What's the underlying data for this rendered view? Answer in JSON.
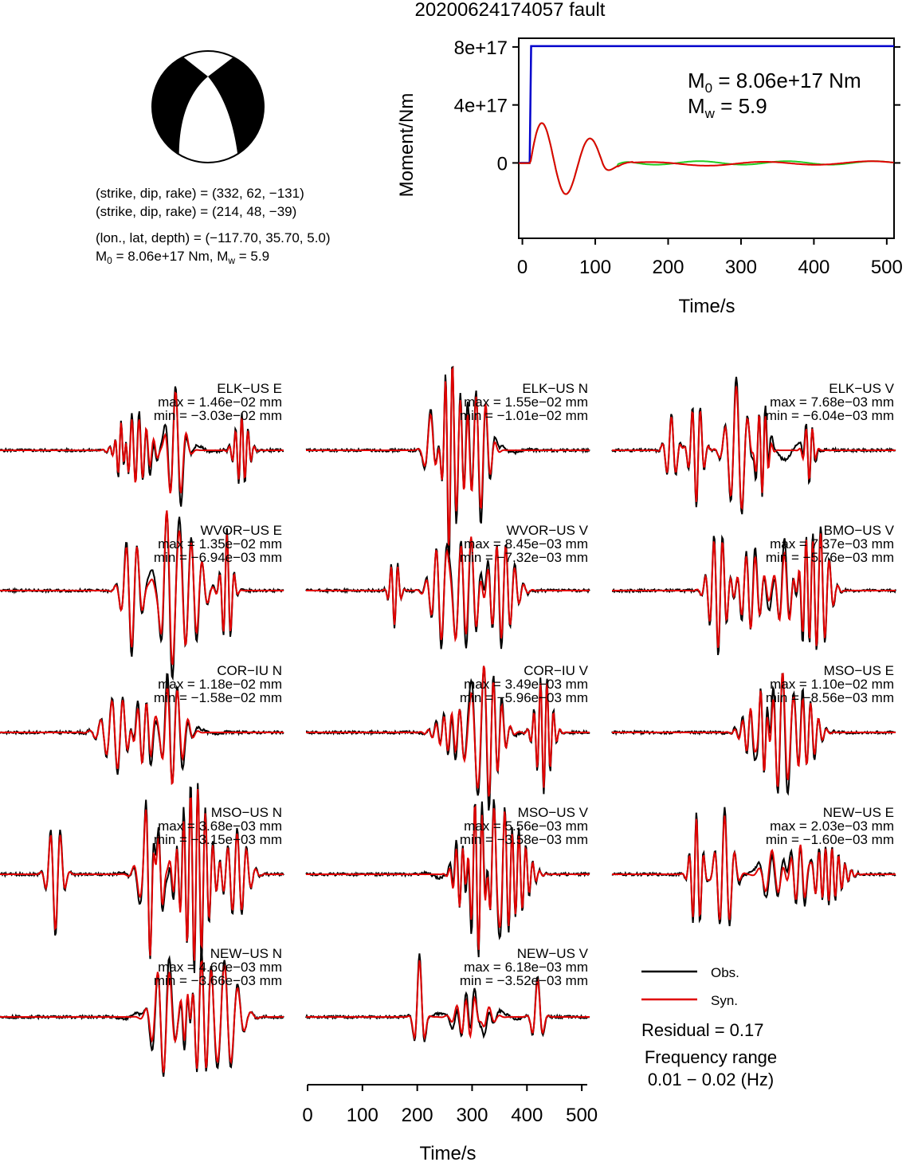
{
  "title": "20200624174057 fault",
  "mechanism": {
    "line1": "(strike, dip, rake) = (332, 62, −131)",
    "line2": "(strike, dip, rake) = (214, 48, −39)",
    "line3": "(lon., lat, depth) = (−117.70, 35.70, 5.0)",
    "m0_prefix": "M",
    "m0_sub": "0",
    "m0_rest": " = 8.06e+17 Nm, M",
    "mw_sub": "w",
    "mw_rest": " = 5.9",
    "beachball_label": "beachball-icon"
  },
  "colors": {
    "observed": "#000000",
    "synthetic": "#e00000",
    "moment": "#0000cc",
    "moment_rate_syn": "#e00000",
    "moment_rate_alt": "#22cc22"
  },
  "chart_data": [
    {
      "type": "line",
      "name": "moment-function",
      "ylabel": "Moment/Nm",
      "xlabel": "Time/s",
      "xlim": [
        -5,
        510
      ],
      "ylim": [
        -5.2e+17,
        8.6e+17
      ],
      "xticks": [
        0,
        100,
        200,
        300,
        400,
        500
      ],
      "xtick_labels": [
        "0",
        "100",
        "200",
        "300",
        "400",
        "500"
      ],
      "yticks": [
        0,
        4e+17,
        8e+17
      ],
      "ytick_labels": [
        "0",
        "4e+17",
        "8e+17"
      ],
      "annot_m0_main": "M",
      "annot_m0_sub": "0",
      "annot_m0_rest": " = 8.06e+17 Nm",
      "annot_mw_main": "M",
      "annot_mw_sub": "w",
      "annot_mw_rest": " = 5.9",
      "moment_step": {
        "t0": 10,
        "t1": 12,
        "value": 8.06e+17
      },
      "oscillation": {
        "amp": 3.1e+17,
        "period": 66,
        "onset": 11,
        "decay_tau": 45,
        "tail_amp": 1.2e+16
      }
    },
    {
      "type": "line",
      "name": "waveform-fits",
      "xlabel": "Time/s",
      "xlim": [
        0,
        510
      ],
      "xticks": [
        0,
        100,
        200,
        300,
        400,
        500
      ],
      "xtick_labels": [
        "0",
        "100",
        "200",
        "300",
        "400",
        "500"
      ],
      "legend": {
        "obs_label": "Obs.",
        "syn_label": "Syn.",
        "residual": "Residual = 0.17",
        "freq_line1": "Frequency range",
        "freq_line2": "0.01 − 0.02 (Hz)"
      },
      "stations": [
        {
          "label": "ELK−US E",
          "max": "max = 1.46e−02 mm",
          "min": "min = −3.03e−02 mm"
        },
        {
          "label": "ELK−US N",
          "max": "max = 1.55e−02 mm",
          "min": "min = −1.01e−02 mm"
        },
        {
          "label": "ELK−US V",
          "max": "max = 7.68e−03 mm",
          "min": "min = −6.04e−03 mm"
        },
        {
          "label": "WVOR−US E",
          "max": "max = 1.35e−02 mm",
          "min": "min = −6.94e−03 mm"
        },
        {
          "label": "WVOR−US V",
          "max": "max = 8.45e−03 mm",
          "min": "min = −7.32e−03 mm"
        },
        {
          "label": "BMO−US V",
          "max": "max = 7.37e−03 mm",
          "min": "min = −5.76e−03 mm"
        },
        {
          "label": "COR−IU N",
          "max": "max = 1.18e−02 mm",
          "min": "min = −1.58e−02 mm"
        },
        {
          "label": "COR−IU V",
          "max": "max = 3.49e−03 mm",
          "min": "min = −5.96e−03 mm"
        },
        {
          "label": "MSO−US E",
          "max": "max = 1.10e−02 mm",
          "min": "min = −8.56e−03 mm"
        },
        {
          "label": "MSO−US N",
          "max": "max = 3.68e−03 mm",
          "min": "min = −3.15e−03 mm"
        },
        {
          "label": "MSO−US V",
          "max": "max = 5.56e−03 mm",
          "min": "min = −3.58e−03 mm"
        },
        {
          "label": "NEW−US E",
          "max": "max = 2.03e−03 mm",
          "min": "min = −1.60e−03 mm"
        },
        {
          "label": "NEW−US N",
          "max": "max = 4.60e−03 mm",
          "min": "min = −3.66e−03 mm"
        },
        {
          "label": "NEW−US V",
          "max": "max = 6.18e−03 mm",
          "min": "min = −3.52e−03 mm"
        }
      ]
    }
  ]
}
